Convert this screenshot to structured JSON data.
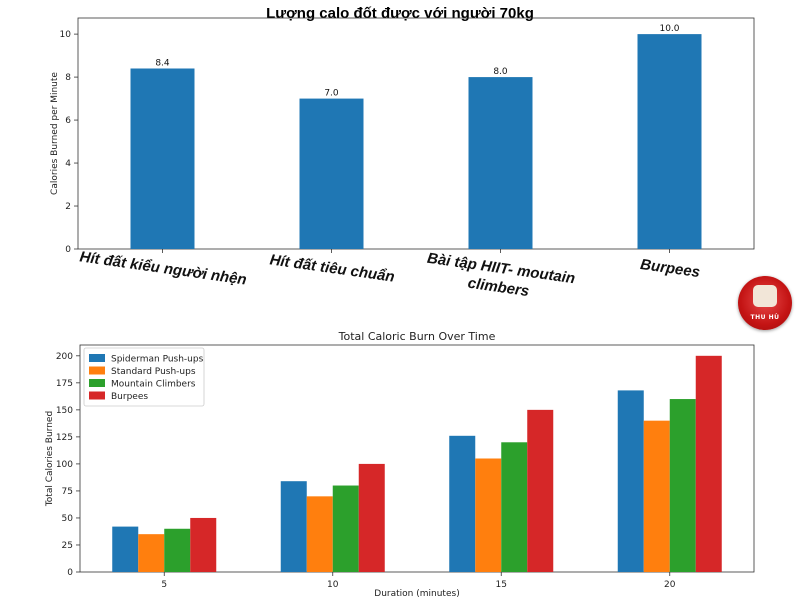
{
  "chart_data": [
    {
      "type": "bar",
      "title": "Lượng calo đốt được với người 70kg",
      "categories": [
        "Hít đất kiểu người nhện",
        "Hít đất tiêu chuẩn",
        "Bài tập HIIT- moutain climbers",
        "Burpees"
      ],
      "values": [
        8.4,
        7.0,
        8.0,
        10.0
      ],
      "value_labels": [
        "8.4",
        "7.0",
        "8.0",
        "10.0"
      ],
      "ylabel": "Calories Burned per Minute",
      "ylim": [
        0,
        10.75
      ],
      "yticks": [
        0,
        2,
        4,
        6,
        8,
        10
      ],
      "color": "#1f77b4",
      "grid": false
    },
    {
      "type": "bar",
      "title": "Total Caloric Burn Over Time",
      "categories": [
        "5",
        "10",
        "15",
        "20"
      ],
      "series": [
        {
          "name": "Spiderman Push-ups",
          "values": [
            42,
            84,
            126,
            168
          ],
          "color": "#1f77b4"
        },
        {
          "name": "Standard Push-ups",
          "values": [
            35,
            70,
            105,
            140
          ],
          "color": "#ff7f0e"
        },
        {
          "name": "Mountain Climbers",
          "values": [
            40,
            80,
            120,
            160
          ],
          "color": "#2ca02c"
        },
        {
          "name": "Burpees",
          "values": [
            50,
            100,
            150,
            200
          ],
          "color": "#d62728"
        }
      ],
      "xlabel": "Duration (minutes)",
      "ylabel": "Total Calories Burned",
      "ylim": [
        0,
        210
      ],
      "yticks": [
        0,
        25,
        50,
        75,
        100,
        125,
        150,
        175,
        200
      ],
      "legend": "top-left",
      "grid": false
    }
  ],
  "logo": {
    "text": "THU HÙ"
  }
}
